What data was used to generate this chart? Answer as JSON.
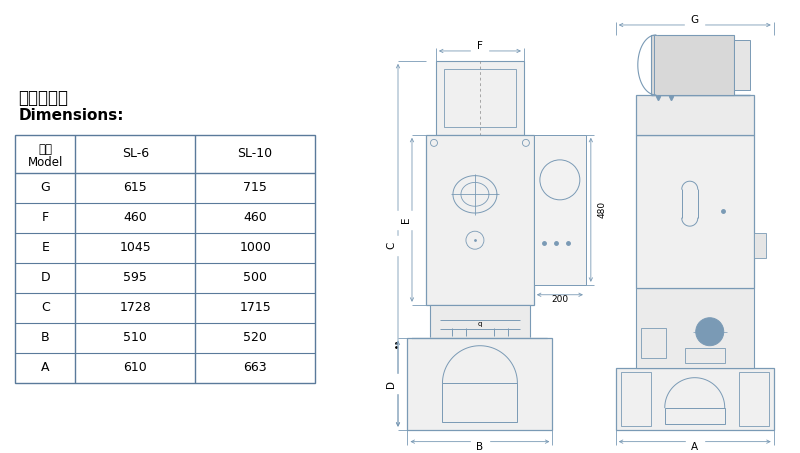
{
  "title_chinese": "外形尺寸：",
  "title_english": "Dimensions:",
  "table_header_col0_line1": "型號",
  "table_header_col0_line2": "Model",
  "table_header_col1": "SL-6",
  "table_header_col2": "SL-10",
  "table_rows": [
    [
      "A",
      "610",
      "663"
    ],
    [
      "B",
      "510",
      "520"
    ],
    [
      "C",
      "1728",
      "1715"
    ],
    [
      "D",
      "595",
      "500"
    ],
    [
      "E",
      "1045",
      "1000"
    ],
    [
      "F",
      "460",
      "460"
    ],
    [
      "G",
      "615",
      "715"
    ]
  ],
  "bg_color": "#ffffff",
  "line_color": "#7a9ab5",
  "text_color": "#000000",
  "table_line_color": "#5a7a9a",
  "dim_label_480": "480",
  "dim_label_200": "200"
}
